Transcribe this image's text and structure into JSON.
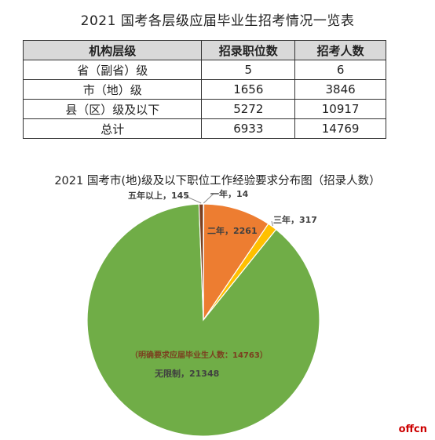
{
  "table": {
    "title": "2021 国考各层级应届毕业生招考情况一览表",
    "headers": [
      "机构层级",
      "招录职位数",
      "招考人数"
    ],
    "rows": [
      [
        "省（副省）级",
        "5",
        "6"
      ],
      [
        "市（地）级",
        "1656",
        "3846"
      ],
      [
        "县（区）级及以下",
        "5272",
        "10917"
      ],
      [
        "总计",
        "6933",
        "14769"
      ]
    ]
  },
  "chart_data": {
    "type": "pie",
    "title": "2021 国考市(地)级及以下职位工作经验要求分布图（招录人数）",
    "slices": [
      {
        "label": "一年",
        "value": 14,
        "color": "#9bbb59"
      },
      {
        "label": "二年",
        "value": 2261,
        "color": "#ed7d31"
      },
      {
        "label": "三年",
        "value": 317,
        "color": "#ffc000"
      },
      {
        "label": "无限制",
        "value": 21348,
        "color": "#70ad47"
      },
      {
        "label": "五年以上",
        "value": 145,
        "color": "#7b3f1f"
      }
    ],
    "annotation": "（明确要求应届毕业生人数：14763）",
    "data_labels": {
      "one_year": "一年，14",
      "two_year": "二年，2261",
      "three_year": "三年，317",
      "unlimited": "无限制，21348",
      "five_plus": "五年以上，145"
    }
  },
  "watermark": "offcn"
}
